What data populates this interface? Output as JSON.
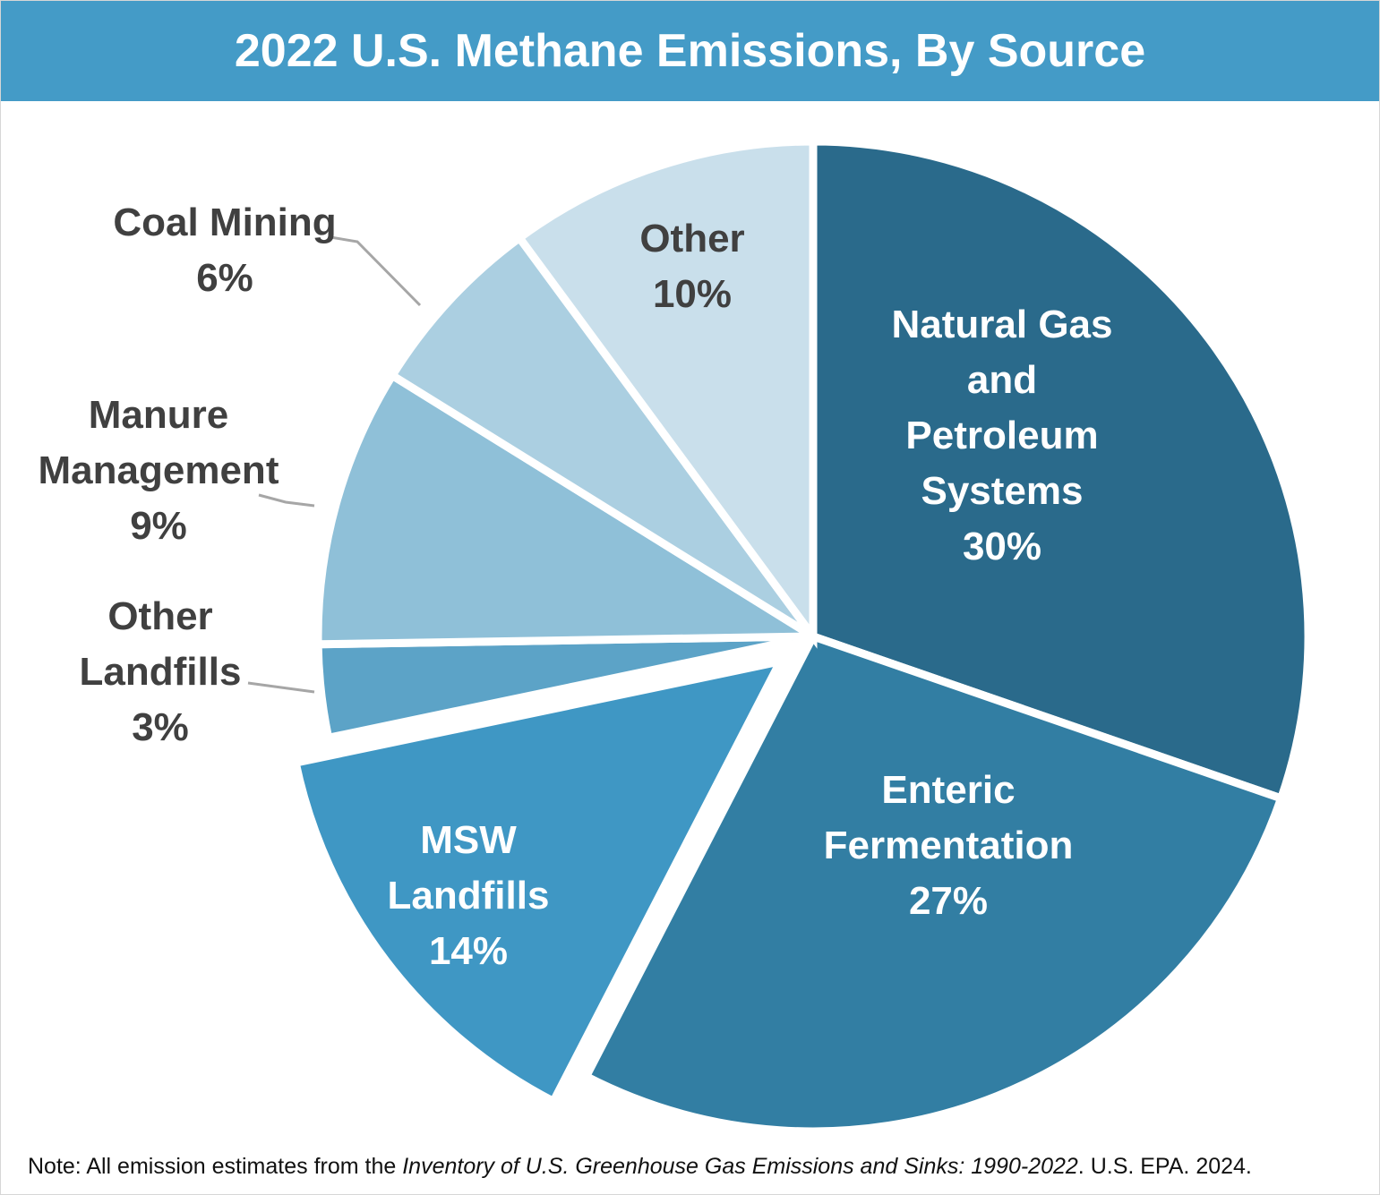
{
  "header": {
    "title": "2022 U.S. Methane Emissions, By Source",
    "background": "#449BC7",
    "text_color": "#FFFFFF"
  },
  "note": {
    "prefix": "Note: All emission estimates from the ",
    "italic": "Inventory of U.S. Greenhouse Gas Emissions and Sinks: 1990-2022",
    "suffix": ". U.S. EPA. 2024."
  },
  "colors": {
    "dark_label": "#404040",
    "leader_line": "#A6A6A6",
    "slice_border": "#FFFFFF",
    "frame_border": "#D6D6D6"
  },
  "chart_data": {
    "type": "pie",
    "title": "2022 U.S. Methane Emissions, By Source",
    "unit": "percent",
    "start_angle_deg": 0,
    "direction": "clockwise",
    "legend": "none",
    "slices": [
      {
        "id": "natural-gas-petroleum",
        "label": "Natural Gas and Petroleum Systems",
        "value": 30,
        "color": "#2A6A8B",
        "label_color": "#FFFFFF",
        "label_placement": "inside",
        "exploded": false,
        "label_lines": [
          "Natural Gas",
          "and",
          "Petroleum",
          "Systems",
          "30%"
        ]
      },
      {
        "id": "enteric-fermentation",
        "label": "Enteric Fermentation",
        "value": 27,
        "color": "#327EA3",
        "label_color": "#FFFFFF",
        "label_placement": "inside",
        "exploded": false,
        "label_lines": [
          "Enteric",
          "Fermentation",
          "27%"
        ]
      },
      {
        "id": "msw-landfills",
        "label": "MSW Landfills",
        "value": 14,
        "color": "#3F97C4",
        "label_color": "#FFFFFF",
        "label_placement": "inside",
        "exploded": true,
        "label_lines": [
          "MSW",
          "Landfills",
          "14%"
        ]
      },
      {
        "id": "other-landfills",
        "label": "Other Landfills",
        "value": 3,
        "color": "#5CA3C7",
        "label_color": "#404040",
        "label_placement": "outside",
        "exploded": false,
        "label_lines": [
          "Other",
          "Landfills",
          "3%"
        ]
      },
      {
        "id": "manure-management",
        "label": "Manure Management",
        "value": 9,
        "color": "#8FC0D8",
        "label_color": "#404040",
        "label_placement": "outside",
        "exploded": false,
        "label_lines": [
          "Manure",
          "Management",
          "9%"
        ]
      },
      {
        "id": "coal-mining",
        "label": "Coal Mining",
        "value": 6,
        "color": "#ABCFE1",
        "label_color": "#404040",
        "label_placement": "outside",
        "exploded": false,
        "label_lines": [
          "Coal Mining",
          "6%"
        ]
      },
      {
        "id": "other",
        "label": "Other",
        "value": 10,
        "color": "#C9DFEB",
        "label_color": "#404040",
        "label_placement": "inside",
        "exploded": false,
        "label_lines": [
          "Other",
          "10%"
        ]
      }
    ]
  }
}
